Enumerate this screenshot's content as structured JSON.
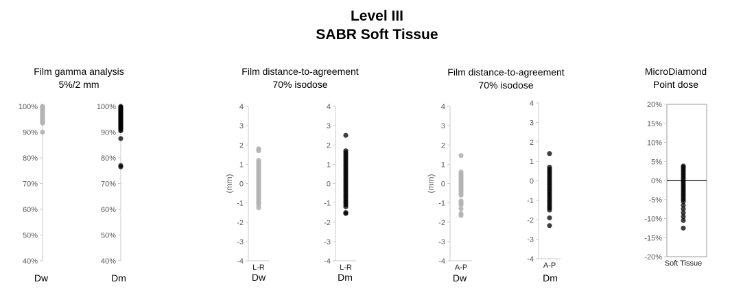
{
  "title": {
    "line1": "Level III",
    "line2": "SABR Soft Tissue"
  },
  "groups": [
    {
      "line1": "Film gamma analysis",
      "line2": "5%/2 mm"
    },
    {
      "line1": "Film distance-to-agreement",
      "line2": "70% isodose"
    },
    {
      "line1": "Film distance-to-agreement",
      "line2": "70% isodose"
    },
    {
      "line1": "MicroDiamond",
      "line2": "Point dose"
    }
  ],
  "sublabels": [
    "Dw",
    "Dm",
    "Dw",
    "Dm",
    "Dw",
    "Dm"
  ],
  "colors": {
    "dw": "#b3b3b3",
    "dm": "#000000",
    "axis": "#c8c8c8",
    "tick_text": "#595959"
  },
  "chart_data": [
    {
      "type": "scatter",
      "yticks": [
        "100%",
        "90%",
        "80%",
        "70%",
        "60%",
        "50%",
        "40%"
      ],
      "ylim": [
        40,
        100
      ],
      "xlabel": "",
      "ylabel": "",
      "series": [
        {
          "values": [
            100,
            99.8,
            99.5,
            99.2,
            99,
            98.7,
            98.4,
            98,
            97.8,
            97.5,
            97.2,
            96.8,
            96.5,
            96,
            95.5,
            95,
            94.5,
            94,
            93.5,
            90
          ]
        }
      ]
    },
    {
      "type": "scatter",
      "yticks": [
        "100%",
        "90%",
        "80%",
        "70%",
        "60%",
        "50%",
        "40%"
      ],
      "ylim": [
        40,
        100
      ],
      "xlabel": "",
      "ylabel": "",
      "series": [
        {
          "values": [
            100,
            99.7,
            99.4,
            99.1,
            98.8,
            98.5,
            98.2,
            97.9,
            97.6,
            97.3,
            97,
            96.7,
            96.4,
            96.1,
            95.8,
            95.5,
            95.2,
            94.9,
            94.6,
            94.3,
            94,
            93.7,
            93.4,
            93.1,
            92.8,
            92.5,
            92.2,
            91.9,
            91.6,
            91.3,
            91,
            90.5,
            87.5,
            77,
            76.5
          ]
        }
      ]
    },
    {
      "type": "scatter",
      "yticks": [
        "4",
        "3",
        "2",
        "1",
        "0",
        "-1",
        "-2",
        "-3",
        "-4"
      ],
      "ylim": [
        -4,
        4
      ],
      "xlabel": "L-R",
      "ylabel": "(mm)",
      "series": [
        {
          "values": [
            1.8,
            1.7,
            1.2,
            1.1,
            1.0,
            0.9,
            0.8,
            0.7,
            0.6,
            0.5,
            0.4,
            0.3,
            0.2,
            0.1,
            0.0,
            -0.1,
            -0.2,
            -0.3,
            -0.4,
            -0.5,
            -0.6,
            -0.7,
            -0.8,
            -0.9,
            -1.0,
            -1.1,
            -1.25
          ]
        }
      ]
    },
    {
      "type": "scatter",
      "yticks": [
        "4",
        "3",
        "2",
        "1",
        "0",
        "-1",
        "-2",
        "-3",
        "-4"
      ],
      "ylim": [
        -4,
        4
      ],
      "xlabel": "L-R",
      "ylabel": "",
      "series": [
        {
          "values": [
            2.5,
            1.7,
            1.6,
            1.5,
            1.4,
            1.3,
            1.2,
            1.1,
            1.0,
            0.9,
            0.8,
            0.7,
            0.6,
            0.5,
            0.4,
            0.3,
            0.2,
            0.1,
            0.0,
            -0.1,
            -0.2,
            -0.3,
            -0.4,
            -0.5,
            -0.6,
            -0.7,
            -0.8,
            -0.9,
            -1.0,
            -1.1,
            -1.2,
            -1.5,
            -1.55
          ]
        }
      ]
    },
    {
      "type": "scatter",
      "yticks": [
        "4",
        "3",
        "2",
        "1",
        "0",
        "-1",
        "-2",
        "-3",
        "-4"
      ],
      "ylim": [
        -4,
        4
      ],
      "xlabel": "A-P",
      "ylabel": "(mm)",
      "series": [
        {
          "values": [
            1.45,
            0.6,
            0.5,
            0.4,
            0.3,
            0.2,
            0.1,
            0.0,
            -0.1,
            -0.2,
            -0.3,
            -0.4,
            -0.5,
            -0.6,
            -0.9,
            -1.0,
            -1.1,
            -1.3,
            -1.55,
            -1.65
          ]
        }
      ]
    },
    {
      "type": "scatter",
      "yticks": [
        "4",
        "3",
        "2",
        "1",
        "0",
        "-1",
        "-2",
        "-3",
        "-4"
      ],
      "ylim": [
        -4,
        4
      ],
      "xlabel": "A-P",
      "ylabel": "",
      "series": [
        {
          "values": [
            1.4,
            0.7,
            0.6,
            0.5,
            0.4,
            0.3,
            0.2,
            0.1,
            0.0,
            -0.1,
            -0.2,
            -0.3,
            -0.4,
            -0.5,
            -0.6,
            -0.7,
            -0.8,
            -0.9,
            -1.0,
            -1.1,
            -1.2,
            -1.3,
            -1.4,
            -1.5,
            -1.9,
            -2.3
          ]
        }
      ]
    },
    {
      "type": "scatter",
      "yticks": [
        "20%",
        "15%",
        "10%",
        "5%",
        "0%",
        "-5%",
        "-10%",
        "-15%",
        "-20%"
      ],
      "ylim": [
        -20,
        20
      ],
      "xlabel": "Soft Tissue",
      "ylabel": "",
      "series": [
        {
          "values": [
            3.8,
            3.5,
            3,
            2.5,
            2,
            1.5,
            1,
            0.5,
            0,
            -0.5,
            -1,
            -1.5,
            -2,
            -2.5,
            -3,
            -3.5,
            -4,
            -4.5,
            -5,
            -5.5,
            -6.5,
            -7.5,
            -8.5,
            -9.5,
            -10.5,
            -12.5
          ]
        }
      ]
    }
  ]
}
